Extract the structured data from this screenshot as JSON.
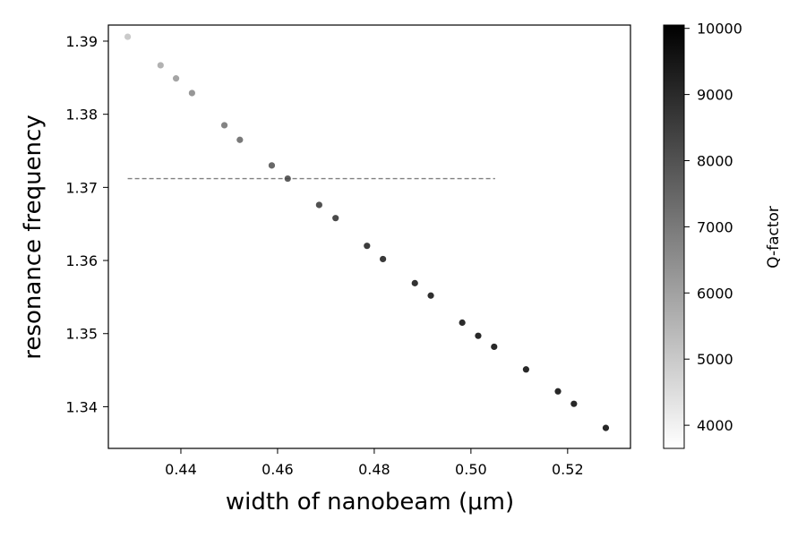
{
  "chart_data": {
    "type": "scatter",
    "xlabel": "width of nanobeam (μm)",
    "ylabel": "resonance frequency",
    "colorbar_label": "Q-factor",
    "xlim": [
      0.425,
      0.533
    ],
    "ylim": [
      1.3343,
      1.3922
    ],
    "x_ticks": [
      0.44,
      0.46,
      0.48,
      0.5,
      0.52
    ],
    "x_tick_labels": [
      "0.44",
      "0.46",
      "0.48",
      "0.50",
      "0.52"
    ],
    "y_ticks": [
      1.34,
      1.35,
      1.36,
      1.37,
      1.38,
      1.39
    ],
    "y_tick_labels": [
      "1.34",
      "1.35",
      "1.36",
      "1.37",
      "1.38",
      "1.39"
    ],
    "colorbar_range": [
      3650,
      10050
    ],
    "colorbar_ticks": [
      4000,
      5000,
      6000,
      7000,
      8000,
      9000,
      10000
    ],
    "colorbar_tick_labels": [
      "4000",
      "5000",
      "6000",
      "7000",
      "8000",
      "9000",
      "10000"
    ],
    "colormap": "Greys",
    "dashed_line": {
      "y": 1.3712,
      "x_start": 0.429,
      "x_end": 0.505,
      "color": "#808080"
    },
    "points": [
      {
        "x": 0.429,
        "y": 1.3906,
        "q": 5200
      },
      {
        "x": 0.4358,
        "y": 1.3867,
        "q": 5900
      },
      {
        "x": 0.439,
        "y": 1.3849,
        "q": 6300
      },
      {
        "x": 0.4423,
        "y": 1.3829,
        "q": 6700
      },
      {
        "x": 0.449,
        "y": 1.3785,
        "q": 7300
      },
      {
        "x": 0.4522,
        "y": 1.3765,
        "q": 7600
      },
      {
        "x": 0.4588,
        "y": 1.373,
        "q": 8100
      },
      {
        "x": 0.4621,
        "y": 1.3712,
        "q": 8400
      },
      {
        "x": 0.4686,
        "y": 1.3676,
        "q": 8800
      },
      {
        "x": 0.472,
        "y": 1.3658,
        "q": 9000
      },
      {
        "x": 0.4785,
        "y": 1.362,
        "q": 9400
      },
      {
        "x": 0.4818,
        "y": 1.3602,
        "q": 9500
      },
      {
        "x": 0.4884,
        "y": 1.3569,
        "q": 9700
      },
      {
        "x": 0.4917,
        "y": 1.3552,
        "q": 9800
      },
      {
        "x": 0.4982,
        "y": 1.3515,
        "q": 9900
      },
      {
        "x": 0.5015,
        "y": 1.3497,
        "q": 9950
      },
      {
        "x": 0.5048,
        "y": 1.3482,
        "q": 10000
      },
      {
        "x": 0.5114,
        "y": 1.3451,
        "q": 10000
      },
      {
        "x": 0.518,
        "y": 1.3421,
        "q": 10000
      },
      {
        "x": 0.5213,
        "y": 1.3404,
        "q": 10000
      },
      {
        "x": 0.5279,
        "y": 1.3371,
        "q": 10000
      }
    ]
  }
}
